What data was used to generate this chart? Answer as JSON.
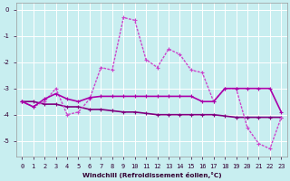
{
  "xlabel": "Windchill (Refroidissement éolien,°C)",
  "background_color": "#c8eef0",
  "grid_color": "#b0d8dc",
  "line_color_solid": "#800080",
  "line_color_dotted": "#cc44cc",
  "line_color_dash": "#aa00aa",
  "x": [
    0,
    1,
    2,
    3,
    4,
    5,
    6,
    7,
    8,
    9,
    10,
    11,
    12,
    13,
    14,
    15,
    16,
    17,
    18,
    19,
    20,
    21,
    22,
    23
  ],
  "y_flat": [
    -3.5,
    -3.5,
    -3.6,
    -3.6,
    -3.7,
    -3.7,
    -3.8,
    -3.8,
    -3.85,
    -3.9,
    -3.9,
    -3.95,
    -4.0,
    -4.0,
    -4.0,
    -4.0,
    -4.0,
    -4.0,
    -4.05,
    -4.1,
    -4.1,
    -4.1,
    -4.1,
    -4.1
  ],
  "y_main": [
    -3.5,
    -3.7,
    -3.5,
    -3.0,
    -4.0,
    -3.9,
    -3.4,
    -2.2,
    -2.3,
    -0.3,
    -0.4,
    -1.9,
    -2.2,
    -1.5,
    -1.7,
    -2.3,
    -2.4,
    -3.5,
    -3.0,
    -3.0,
    -4.5,
    -5.1,
    -5.3,
    -4.1
  ],
  "y_mid": [
    -3.5,
    -3.7,
    -3.4,
    -3.2,
    -3.4,
    -3.5,
    -3.35,
    -3.3,
    -3.3,
    -3.3,
    -3.3,
    -3.3,
    -3.3,
    -3.3,
    -3.3,
    -3.3,
    -3.5,
    -3.5,
    -3.0,
    -3.0,
    -3.0,
    -3.0,
    -3.0,
    -3.9
  ],
  "ylim": [
    -5.6,
    0.25
  ],
  "xlim": [
    -0.5,
    23.5
  ],
  "yticks": [
    0,
    -1,
    -2,
    -3,
    -4,
    -5
  ]
}
